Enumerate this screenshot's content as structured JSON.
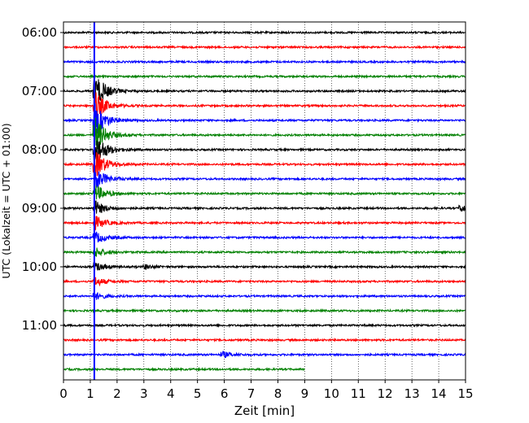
{
  "chart_data": {
    "type": "line",
    "xlabel": "Zeit  [min]",
    "ylabel": "UTC (Lokalzeit = UTC + 01:00)",
    "xlim": [
      0,
      15
    ],
    "x_ticks": [
      0,
      1,
      2,
      3,
      4,
      5,
      6,
      7,
      8,
      9,
      10,
      11,
      12,
      13,
      14,
      15
    ],
    "y_ticks": [
      {
        "label": "06:00",
        "row": 0
      },
      {
        "label": "07:00",
        "row": 4
      },
      {
        "label": "08:00",
        "row": 8
      },
      {
        "label": "09:00",
        "row": 12
      },
      {
        "label": "10:00",
        "row": 16
      },
      {
        "label": "11:00",
        "row": 20
      }
    ],
    "grid": "vertical dotted",
    "traces": {
      "rows": 24,
      "minutes_per_row": 15,
      "start": "06:00",
      "color_cycle": [
        "#000000",
        "#ff0000",
        "#0000ff",
        "#008000"
      ],
      "last_row_end_min": 9
    },
    "marker_line": {
      "x_min": 1.15,
      "color": "#0000ff"
    },
    "events": [
      {
        "row": 4,
        "x_min": 1.15,
        "amp": 25
      },
      {
        "row": 5,
        "x_min": 1.15,
        "amp": 20
      },
      {
        "row": 6,
        "x_min": 1.15,
        "amp": 22
      },
      {
        "row": 7,
        "x_min": 1.15,
        "amp": 24
      },
      {
        "row": 8,
        "x_min": 1.15,
        "amp": 24
      },
      {
        "row": 9,
        "x_min": 1.15,
        "amp": 20
      },
      {
        "row": 10,
        "x_min": 1.2,
        "amp": 14
      },
      {
        "row": 11,
        "x_min": 1.15,
        "amp": 12
      },
      {
        "row": 12,
        "x_min": 1.15,
        "amp": 10
      },
      {
        "row": 13,
        "x_min": 1.15,
        "amp": 9
      },
      {
        "row": 14,
        "x_min": 1.15,
        "amp": 8
      },
      {
        "row": 15,
        "x_min": 1.15,
        "amp": 7
      },
      {
        "row": 16,
        "x_min": 1.15,
        "amp": 6
      },
      {
        "row": 17,
        "x_min": 1.15,
        "amp": 6
      },
      {
        "row": 18,
        "x_min": 1.15,
        "amp": 5
      },
      {
        "row": 12,
        "x_min": 14.8,
        "amp": 5
      },
      {
        "row": 22,
        "x_min": 5.9,
        "amp": 4
      },
      {
        "row": 16,
        "x_min": 3.0,
        "amp": 3
      }
    ]
  }
}
